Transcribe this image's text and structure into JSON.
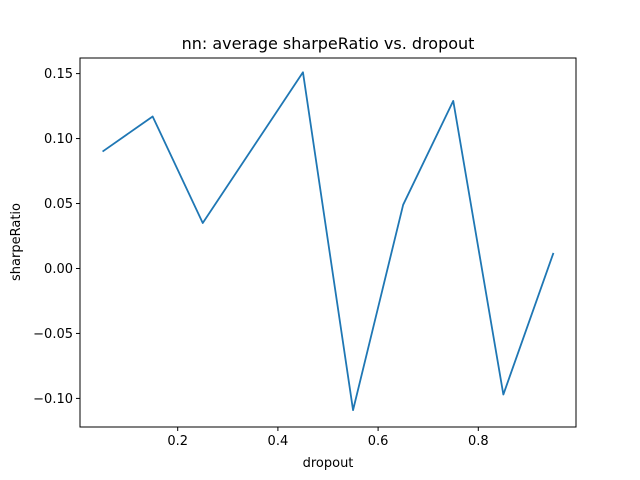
{
  "chart_data": {
    "type": "line",
    "title": "nn: average sharpeRatio vs. dropout",
    "xlabel": "dropout",
    "ylabel": "sharpeRatio",
    "xlim": [
      0.005,
      0.995
    ],
    "ylim": [
      -0.122,
      0.162
    ],
    "grid": false,
    "x_ticks": [
      0.2,
      0.4,
      0.6,
      0.8
    ],
    "x_tick_labels": [
      "0.2",
      "0.4",
      "0.6",
      "0.8"
    ],
    "y_ticks": [
      -0.1,
      -0.05,
      0.0,
      0.05,
      0.1,
      0.15
    ],
    "y_tick_labels": [
      "−0.10",
      "−0.05",
      "0.00",
      "0.05",
      "0.10",
      "0.15"
    ],
    "series": [
      {
        "color": "#1f77b4",
        "x": [
          0.05,
          0.15,
          0.25,
          0.45,
          0.55,
          0.65,
          0.75,
          0.85,
          0.95
        ],
        "y": [
          0.09,
          0.117,
          0.035,
          0.151,
          -0.109,
          0.049,
          0.129,
          -0.097,
          0.012
        ]
      }
    ]
  }
}
